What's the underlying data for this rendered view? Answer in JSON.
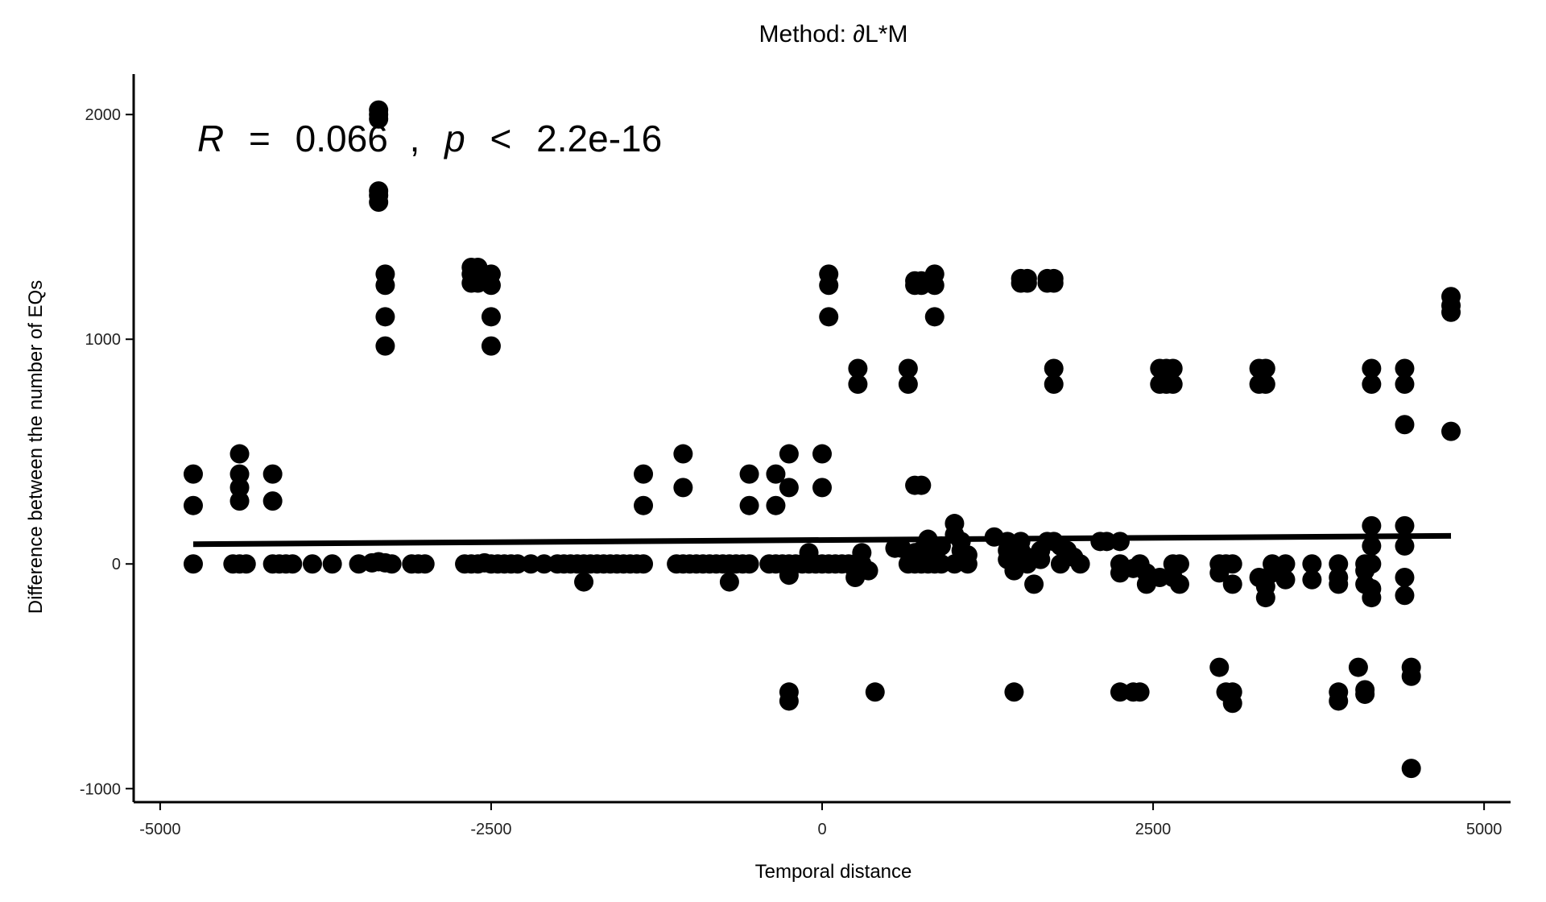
{
  "chart_data": {
    "type": "scatter",
    "title": "Method: ∂L*M",
    "xlabel": "Temporal distance",
    "ylabel": "Difference between the number of EQs",
    "xlim": [
      -5200,
      5200
    ],
    "ylim": [
      -1060,
      2180
    ],
    "xticks": [
      -5000,
      -2500,
      0,
      2500,
      5000
    ],
    "xtick_labels": [
      "-5000",
      "-2500",
      "0",
      "2500",
      "5000"
    ],
    "yticks": [
      -1000,
      0,
      1000,
      2000
    ],
    "ytick_labels": [
      "-1000",
      "0",
      "1000",
      "2000"
    ],
    "grid": false,
    "legend": "none",
    "point_color": "#000000",
    "annotation": {
      "r_symbol": "R",
      "r_equals": "=",
      "r_value": "0.066",
      "separator": ",",
      "p_symbol": "p",
      "p_less": "<",
      "p_value": "2.2e-16"
    },
    "trend_line": {
      "x": [
        -4750,
        4750
      ],
      "y": [
        88,
        125
      ]
    },
    "points": [
      [
        -4750,
        400
      ],
      [
        -4750,
        260
      ],
      [
        -4750,
        0
      ],
      [
        -4400,
        490
      ],
      [
        -4400,
        400
      ],
      [
        -4400,
        340
      ],
      [
        -4400,
        280
      ],
      [
        -4450,
        0
      ],
      [
        -4400,
        0
      ],
      [
        -4350,
        0
      ],
      [
        -4150,
        400
      ],
      [
        -4150,
        280
      ],
      [
        -4150,
        0
      ],
      [
        -4100,
        0
      ],
      [
        -4050,
        0
      ],
      [
        -4000,
        0
      ],
      [
        -3850,
        0
      ],
      [
        -3700,
        0
      ],
      [
        -3500,
        0
      ],
      [
        -3350,
        2020
      ],
      [
        -3350,
        2000
      ],
      [
        -3350,
        1980
      ],
      [
        -3350,
        1660
      ],
      [
        -3350,
        1640
      ],
      [
        -3350,
        1610
      ],
      [
        -3300,
        1290
      ],
      [
        -3300,
        1240
      ],
      [
        -3300,
        1100
      ],
      [
        -3300,
        970
      ],
      [
        -3400,
        5
      ],
      [
        -3350,
        10
      ],
      [
        -3300,
        5
      ],
      [
        -3250,
        0
      ],
      [
        -3100,
        0
      ],
      [
        -3050,
        0
      ],
      [
        -3000,
        0
      ],
      [
        -2650,
        1320
      ],
      [
        -2650,
        1290
      ],
      [
        -2650,
        1250
      ],
      [
        -2600,
        1320
      ],
      [
        -2600,
        1250
      ],
      [
        -2500,
        1290
      ],
      [
        -2500,
        1240
      ],
      [
        -2500,
        1100
      ],
      [
        -2500,
        970
      ],
      [
        -2700,
        0
      ],
      [
        -2650,
        0
      ],
      [
        -2600,
        0
      ],
      [
        -2550,
        5
      ],
      [
        -2500,
        0
      ],
      [
        -2450,
        0
      ],
      [
        -2400,
        0
      ],
      [
        -2350,
        0
      ],
      [
        -2300,
        0
      ],
      [
        -2200,
        0
      ],
      [
        -2100,
        0
      ],
      [
        -2000,
        0
      ],
      [
        -1950,
        0
      ],
      [
        -1900,
        0
      ],
      [
        -1850,
        0
      ],
      [
        -1800,
        0
      ],
      [
        -1750,
        0
      ],
      [
        -1700,
        0
      ],
      [
        -1650,
        0
      ],
      [
        -1600,
        0
      ],
      [
        -1550,
        0
      ],
      [
        -1500,
        0
      ],
      [
        -1450,
        0
      ],
      [
        -1400,
        0
      ],
      [
        -1350,
        0
      ],
      [
        -1800,
        -80
      ],
      [
        -1350,
        400
      ],
      [
        -1350,
        260
      ],
      [
        -1050,
        490
      ],
      [
        -1050,
        340
      ],
      [
        -1100,
        0
      ],
      [
        -1050,
        0
      ],
      [
        -1000,
        0
      ],
      [
        -950,
        0
      ],
      [
        -900,
        0
      ],
      [
        -850,
        0
      ],
      [
        -800,
        0
      ],
      [
        -750,
        0
      ],
      [
        -700,
        0
      ],
      [
        -650,
        0
      ],
      [
        -600,
        0
      ],
      [
        -550,
        0
      ],
      [
        -700,
        -80
      ],
      [
        -550,
        400
      ],
      [
        -550,
        260
      ],
      [
        -350,
        400
      ],
      [
        -350,
        260
      ],
      [
        -250,
        490
      ],
      [
        -250,
        340
      ],
      [
        -400,
        0
      ],
      [
        -350,
        0
      ],
      [
        -300,
        0
      ],
      [
        -250,
        0
      ],
      [
        -200,
        0
      ],
      [
        -150,
        0
      ],
      [
        -100,
        0
      ],
      [
        -50,
        0
      ],
      [
        -250,
        -50
      ],
      [
        -250,
        -570
      ],
      [
        -250,
        -610
      ],
      [
        0,
        490
      ],
      [
        0,
        340
      ],
      [
        -100,
        50
      ],
      [
        50,
        1290
      ],
      [
        50,
        1240
      ],
      [
        50,
        1100
      ],
      [
        0,
        0
      ],
      [
        50,
        0
      ],
      [
        100,
        0
      ],
      [
        150,
        0
      ],
      [
        200,
        0
      ],
      [
        250,
        0
      ],
      [
        300,
        50
      ],
      [
        250,
        -60
      ],
      [
        350,
        -30
      ],
      [
        300,
        0
      ],
      [
        270,
        870
      ],
      [
        270,
        800
      ],
      [
        400,
        -570
      ],
      [
        650,
        870
      ],
      [
        650,
        800
      ],
      [
        700,
        1260
      ],
      [
        700,
        1240
      ],
      [
        750,
        1260
      ],
      [
        750,
        1240
      ],
      [
        850,
        1290
      ],
      [
        850,
        1240
      ],
      [
        850,
        1100
      ],
      [
        700,
        350
      ],
      [
        750,
        350
      ],
      [
        550,
        70
      ],
      [
        600,
        70
      ],
      [
        650,
        0
      ],
      [
        700,
        0
      ],
      [
        700,
        50
      ],
      [
        750,
        0
      ],
      [
        750,
        60
      ],
      [
        800,
        0
      ],
      [
        800,
        30
      ],
      [
        850,
        0
      ],
      [
        850,
        60
      ],
      [
        900,
        0
      ],
      [
        800,
        110
      ],
      [
        900,
        80
      ],
      [
        1000,
        180
      ],
      [
        1000,
        130
      ],
      [
        1050,
        100
      ],
      [
        1050,
        60
      ],
      [
        1100,
        40
      ],
      [
        1100,
        0
      ],
      [
        1000,
        0
      ],
      [
        1300,
        120
      ],
      [
        1400,
        100
      ],
      [
        1400,
        60
      ],
      [
        1400,
        20
      ],
      [
        1450,
        0
      ],
      [
        1450,
        -30
      ],
      [
        1500,
        100
      ],
      [
        1500,
        60
      ],
      [
        1550,
        30
      ],
      [
        1550,
        0
      ],
      [
        1600,
        -90
      ],
      [
        1650,
        60
      ],
      [
        1650,
        20
      ],
      [
        1500,
        1270
      ],
      [
        1500,
        1250
      ],
      [
        1550,
        1270
      ],
      [
        1550,
        1250
      ],
      [
        1700,
        1270
      ],
      [
        1700,
        1250
      ],
      [
        1750,
        1270
      ],
      [
        1750,
        1250
      ],
      [
        1750,
        870
      ],
      [
        1750,
        800
      ],
      [
        1700,
        100
      ],
      [
        1750,
        100
      ],
      [
        1800,
        80
      ],
      [
        1800,
        0
      ],
      [
        1850,
        60
      ],
      [
        1900,
        30
      ],
      [
        1950,
        0
      ],
      [
        2100,
        100
      ],
      [
        2150,
        100
      ],
      [
        2250,
        100
      ],
      [
        2250,
        0
      ],
      [
        2250,
        -40
      ],
      [
        2350,
        -20
      ],
      [
        2400,
        0
      ],
      [
        2450,
        -40
      ],
      [
        2450,
        -90
      ],
      [
        2550,
        -60
      ],
      [
        1450,
        -570
      ],
      [
        2250,
        -570
      ],
      [
        2350,
        -570
      ],
      [
        2400,
        -570
      ],
      [
        2550,
        870
      ],
      [
        2550,
        800
      ],
      [
        2600,
        870
      ],
      [
        2650,
        870
      ],
      [
        2650,
        800
      ],
      [
        2600,
        800
      ],
      [
        2650,
        0
      ],
      [
        2700,
        0
      ],
      [
        2650,
        -60
      ],
      [
        2700,
        -90
      ],
      [
        3000,
        -460
      ],
      [
        3050,
        -570
      ],
      [
        3100,
        -570
      ],
      [
        3100,
        -620
      ],
      [
        3000,
        0
      ],
      [
        3050,
        0
      ],
      [
        3100,
        0
      ],
      [
        3000,
        -40
      ],
      [
        3100,
        -90
      ],
      [
        3300,
        870
      ],
      [
        3300,
        800
      ],
      [
        3350,
        870
      ],
      [
        3350,
        800
      ],
      [
        3300,
        -60
      ],
      [
        3350,
        -100
      ],
      [
        3350,
        -150
      ],
      [
        3400,
        0
      ],
      [
        3400,
        -40
      ],
      [
        3500,
        0
      ],
      [
        3500,
        -70
      ],
      [
        3700,
        0
      ],
      [
        3700,
        -70
      ],
      [
        3900,
        0
      ],
      [
        3900,
        -60
      ],
      [
        3900,
        -90
      ],
      [
        3900,
        -570
      ],
      [
        3900,
        -610
      ],
      [
        4100,
        0
      ],
      [
        4100,
        -30
      ],
      [
        4100,
        -90
      ],
      [
        4150,
        -110
      ],
      [
        4150,
        -150
      ],
      [
        4150,
        80
      ],
      [
        4150,
        170
      ],
      [
        4150,
        0
      ],
      [
        4050,
        -460
      ],
      [
        4100,
        -560
      ],
      [
        4100,
        -580
      ],
      [
        4150,
        870
      ],
      [
        4150,
        800
      ],
      [
        4400,
        870
      ],
      [
        4400,
        800
      ],
      [
        4400,
        620
      ],
      [
        4400,
        170
      ],
      [
        4400,
        80
      ],
      [
        4400,
        -60
      ],
      [
        4400,
        -140
      ],
      [
        4450,
        -460
      ],
      [
        4450,
        -500
      ],
      [
        4450,
        -910
      ],
      [
        4750,
        1190
      ],
      [
        4750,
        1150
      ],
      [
        4750,
        1120
      ],
      [
        4750,
        590
      ]
    ]
  }
}
